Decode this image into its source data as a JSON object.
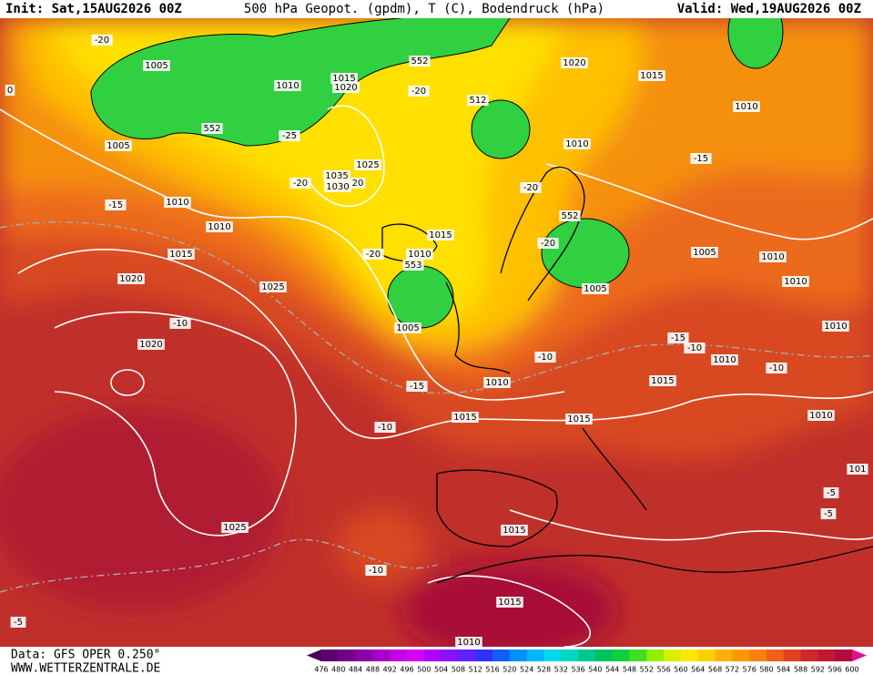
{
  "header": {
    "init": "Init: Sat,15AUG2026 00Z",
    "title": "500 hPa Geopot. (gpdm), T (C), Bodendruck (hPa)",
    "valid": "Valid: Wed,19AUG2026 00Z"
  },
  "map": {
    "labels": [
      "-20",
      "1005",
      "1010",
      "1015",
      "1020",
      "552",
      "-20",
      "552",
      "-25",
      "1005",
      "1025",
      "1035",
      "1030",
      "20",
      "-20",
      "1010",
      "-15",
      "1010",
      "1015",
      "-20",
      "1010",
      "553",
      "1015",
      "1020",
      "1025",
      "-10",
      "1005",
      "1020",
      "-15",
      "-10",
      "1010",
      "1015",
      "1025",
      "-10",
      "1015",
      "1015",
      "1010",
      "-5",
      "1020",
      "1015",
      "1010",
      "1010",
      "-15",
      "-20",
      "552",
      "-20",
      "1005",
      "1010",
      "1005",
      "1010",
      "1010",
      "-15",
      "-10",
      "1010",
      "-10",
      "-10",
      "1015",
      "1015",
      "1010",
      "101",
      "-5",
      "-5",
      "0",
      "512"
    ]
  },
  "footer": {
    "source": "Data: GFS OPER 0.250°",
    "site": "WWW.WETTERZENTRALE.DE"
  },
  "colorbar": {
    "labels": [
      476,
      480,
      484,
      488,
      492,
      496,
      500,
      504,
      508,
      512,
      516,
      520,
      524,
      528,
      532,
      536,
      540,
      544,
      548,
      552,
      556,
      560,
      564,
      568,
      572,
      576,
      580,
      584,
      588,
      592,
      596,
      600
    ],
    "colors": [
      "#4a0058",
      "#5e006e",
      "#74008a",
      "#8c00a8",
      "#a800c8",
      "#c400e6",
      "#d800f8",
      "#b000ff",
      "#8a10ff",
      "#6020ff",
      "#3030ff",
      "#1060ff",
      "#0090ff",
      "#00b8ff",
      "#00d8f0",
      "#00d8c0",
      "#00c890",
      "#00c060",
      "#10d040",
      "#40e020",
      "#90f000",
      "#d8f000",
      "#ffe800",
      "#ffd000",
      "#ffb000",
      "#ff9800",
      "#f88010",
      "#f06018",
      "#e04020",
      "#d02828",
      "#c01830",
      "#b00c40",
      "#e01090"
    ]
  }
}
